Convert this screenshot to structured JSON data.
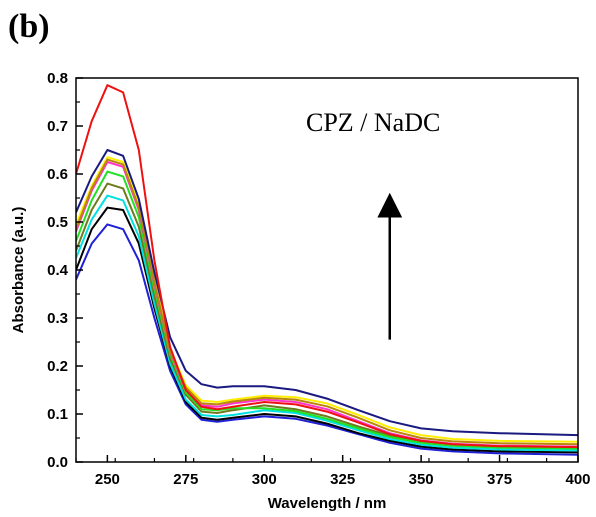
{
  "panel_label": "(b)",
  "chart_data": {
    "type": "line",
    "title": "",
    "annotation": "CPZ / NaDC",
    "xlabel": "Wavelength / nm",
    "ylabel": "Absorbance (a.u.)",
    "xlim": [
      240,
      400
    ],
    "ylim": [
      0.0,
      0.8
    ],
    "xticks": [
      250,
      275,
      300,
      325,
      350,
      375,
      400
    ],
    "yticks": [
      0.0,
      0.1,
      0.2,
      0.3,
      0.4,
      0.5,
      0.6,
      0.7,
      0.8
    ],
    "ytick_labels": [
      "0.0",
      "0.1",
      "0.2",
      "0.3",
      "0.4",
      "0.5",
      "0.6",
      "0.7",
      "0.8"
    ],
    "x": [
      240,
      245,
      250,
      255,
      260,
      265,
      270,
      275,
      280,
      285,
      290,
      300,
      310,
      320,
      330,
      340,
      350,
      360,
      375,
      400
    ],
    "grid": false,
    "legend": "none",
    "arrow": {
      "direction": "up",
      "x_from": 340,
      "y_from": 0.255,
      "y_to": 0.535
    },
    "series": [
      {
        "color": "#1f1fd6",
        "values": [
          0.38,
          0.455,
          0.495,
          0.485,
          0.42,
          0.3,
          0.19,
          0.12,
          0.088,
          0.084,
          0.088,
          0.095,
          0.09,
          0.076,
          0.058,
          0.04,
          0.028,
          0.022,
          0.018,
          0.015
        ]
      },
      {
        "color": "#000000",
        "values": [
          0.4,
          0.485,
          0.53,
          0.525,
          0.455,
          0.32,
          0.2,
          0.125,
          0.092,
          0.088,
          0.092,
          0.1,
          0.095,
          0.08,
          0.06,
          0.044,
          0.032,
          0.026,
          0.022,
          0.02
        ]
      },
      {
        "color": "#00e0e0",
        "values": [
          0.425,
          0.505,
          0.555,
          0.545,
          0.47,
          0.33,
          0.205,
          0.13,
          0.098,
          0.095,
          0.098,
          0.108,
          0.102,
          0.086,
          0.066,
          0.048,
          0.036,
          0.03,
          0.026,
          0.024
        ]
      },
      {
        "color": "#6e7a1e",
        "values": [
          0.44,
          0.525,
          0.58,
          0.57,
          0.49,
          0.345,
          0.215,
          0.14,
          0.105,
          0.102,
          0.108,
          0.118,
          0.11,
          0.095,
          0.074,
          0.055,
          0.042,
          0.036,
          0.032,
          0.03
        ]
      },
      {
        "color": "#22e022",
        "values": [
          0.46,
          0.545,
          0.605,
          0.595,
          0.51,
          0.36,
          0.225,
          0.145,
          0.11,
          0.108,
          0.112,
          0.112,
          0.106,
          0.09,
          0.07,
          0.052,
          0.04,
          0.034,
          0.03,
          0.028
        ]
      },
      {
        "color": "#ff33cc",
        "values": [
          0.48,
          0.565,
          0.625,
          0.615,
          0.525,
          0.37,
          0.23,
          0.15,
          0.118,
          0.115,
          0.122,
          0.13,
          0.125,
          0.11,
          0.085,
          0.06,
          0.045,
          0.038,
          0.034,
          0.032
        ]
      },
      {
        "color": "#ffee00",
        "values": [
          0.495,
          0.575,
          0.635,
          0.625,
          0.535,
          0.38,
          0.235,
          0.16,
          0.128,
          0.125,
          0.13,
          0.138,
          0.135,
          0.122,
          0.098,
          0.072,
          0.056,
          0.048,
          0.044,
          0.042
        ]
      },
      {
        "color": "#b8860b",
        "values": [
          0.485,
          0.57,
          0.63,
          0.62,
          0.53,
          0.375,
          0.232,
          0.155,
          0.122,
          0.12,
          0.126,
          0.134,
          0.13,
          0.116,
          0.092,
          0.066,
          0.05,
          0.043,
          0.039,
          0.037
        ]
      },
      {
        "color": "#1a1a80",
        "values": [
          0.52,
          0.595,
          0.65,
          0.638,
          0.548,
          0.395,
          0.26,
          0.19,
          0.162,
          0.155,
          0.158,
          0.158,
          0.15,
          0.132,
          0.108,
          0.085,
          0.07,
          0.064,
          0.06,
          0.056
        ]
      },
      {
        "color": "#ee1111",
        "values": [
          0.6,
          0.71,
          0.785,
          0.77,
          0.65,
          0.42,
          0.24,
          0.15,
          0.115,
          0.11,
          0.115,
          0.125,
          0.12,
          0.105,
          0.082,
          0.058,
          0.044,
          0.037,
          0.033,
          0.031
        ]
      }
    ]
  }
}
